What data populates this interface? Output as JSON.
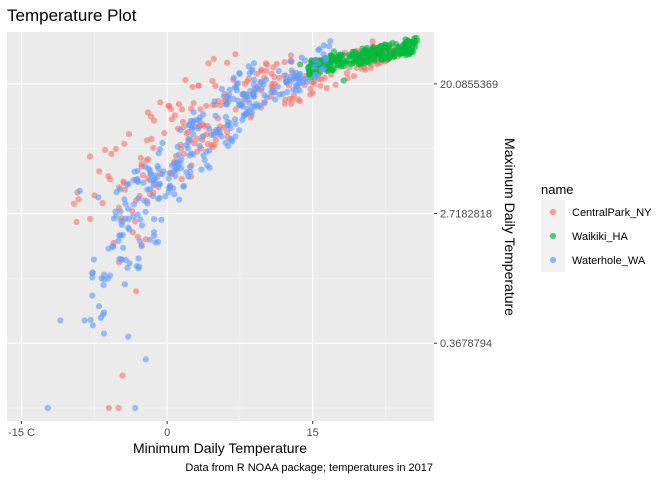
{
  "chart_data": {
    "type": "scatter",
    "title": "Temperature Plot",
    "xlabel": "Minimum Daily Temperature",
    "ylabel": "Maximum Daily Temperature",
    "caption": "Data from R NOAA package; temperatures in 2017",
    "x_scale": "linear",
    "y_scale": "log",
    "xlim": [
      -16.5,
      27.5
    ],
    "ylim_log": [
      -2.2,
      3.8
    ],
    "x_ticks": [
      {
        "value": -15,
        "label": "-15 C"
      },
      {
        "value": 0,
        "label": "0"
      },
      {
        "value": 15,
        "label": "15"
      }
    ],
    "x_minor_ticks": [
      -7.5,
      7.5,
      22.5
    ],
    "y_ticks": [
      {
        "value_log": -1,
        "label": "0.3678794"
      },
      {
        "value_log": 1,
        "label": "2.7182818"
      },
      {
        "value_log": 3,
        "label": "20.0855369"
      }
    ],
    "y_minor_ticks_log": [
      -2,
      0,
      2
    ],
    "grid": true,
    "legend": {
      "title": "name",
      "position": "right",
      "entries": [
        "CentralPark_NY",
        "Waikiki_HA",
        "Waterhole_WA"
      ]
    },
    "series": [
      {
        "name": "CentralPark_NY",
        "color": "#F8766D",
        "regions": [
          {
            "x": [
              -9.5,
              8.5
            ],
            "y_log": [
              1.1,
              3.1
            ],
            "n": 60
          },
          {
            "x": [
              -6,
              5
            ],
            "y_log": [
              0.6,
              2.8
            ],
            "n": 50
          },
          {
            "x": [
              3,
              13
            ],
            "y_log": [
              2.2,
              3.25
            ],
            "n": 60
          },
          {
            "x": [
              12,
              22
            ],
            "y_log": [
              2.85,
              3.5
            ],
            "n": 60
          },
          {
            "x": [
              20,
              24.5
            ],
            "y_log": [
              3.3,
              3.55
            ],
            "n": 25
          }
        ],
        "points": [
          [
            -9.6,
            1.15
          ],
          [
            -7,
            1.65
          ],
          [
            -4.6,
            -1.5
          ],
          [
            -6,
            -2.0
          ],
          [
            -5,
            -2.0
          ],
          [
            -3.2,
            -0.2
          ]
        ]
      },
      {
        "name": "Waikiki_HA",
        "color": "#00BA38",
        "regions": [
          {
            "x": [
              14.5,
              25.8
            ],
            "y_log": [
              3.25,
              3.6
            ],
            "n": 260
          }
        ],
        "points": [
          [
            14.8,
            3.1
          ],
          [
            16.3,
            3.4
          ],
          [
            17.2,
            3.5
          ],
          [
            18.2,
            3.05
          ],
          [
            13.7,
            3.3
          ]
        ]
      },
      {
        "name": "Waterhole_WA",
        "color": "#619CFF",
        "regions": [
          {
            "x": [
              -5.5,
              3
            ],
            "y_log": [
              0.9,
              2.2
            ],
            "n": 80
          },
          {
            "x": [
              -8,
              0
            ],
            "y_log": [
              -0.3,
              1.3
            ],
            "n": 50
          },
          {
            "x": [
              0,
              9
            ],
            "y_log": [
              1.5,
              3.0
            ],
            "n": 90
          },
          {
            "x": [
              7,
              14
            ],
            "y_log": [
              2.6,
              3.25
            ],
            "n": 60
          },
          {
            "x": [
              12,
              17
            ],
            "y_log": [
              2.9,
              3.5
            ],
            "n": 30
          }
        ],
        "points": [
          [
            -11,
            -0.65
          ],
          [
            -8.5,
            -0.65
          ],
          [
            -6.5,
            -0.85
          ],
          [
            -6.1,
            0.0
          ],
          [
            -4,
            -0.9
          ],
          [
            -2.2,
            -1.25
          ],
          [
            -12.3,
            -2.0
          ],
          [
            -3.3,
            -2.0
          ],
          [
            -7.1,
            1.25
          ],
          [
            -9,
            1.35
          ]
        ]
      }
    ]
  }
}
